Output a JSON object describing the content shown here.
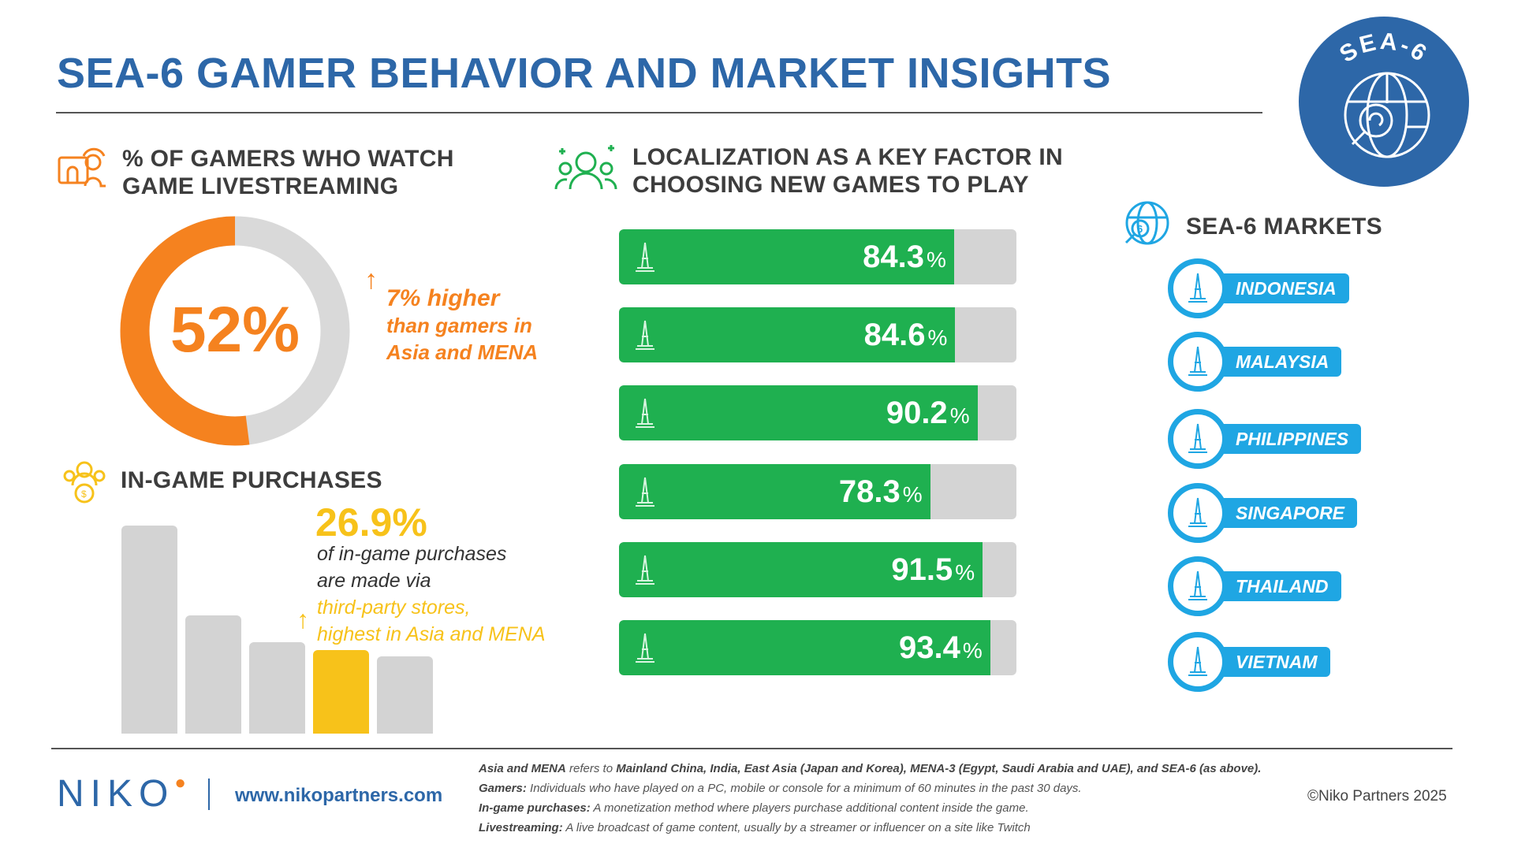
{
  "title": "SEA-6 GAMER BEHAVIOR AND MARKET INSIGHTS",
  "badge": {
    "text": "SEA-6",
    "color": "#2d67a8"
  },
  "livestream": {
    "heading_line1": "% OF GAMERS WHO WATCH",
    "heading_line2": "GAME LIVESTREAMING",
    "value_label": "52%",
    "note_highlight": "7% higher",
    "note_line2": "than gamers in",
    "note_line3": "Asia and MENA",
    "icon": "livestream-icon"
  },
  "purchases": {
    "heading": "IN-GAME PURCHASES",
    "value_label": "26.9%",
    "line1": "of in-game purchases",
    "line2": "are made via",
    "line3": "third-party stores,",
    "line4": "highest in Asia and MENA",
    "icon": "coin-people-icon"
  },
  "localization": {
    "heading_line1": "LOCALIZATION AS A KEY FACTOR IN",
    "heading_line2": "CHOOSING NEW GAMES TO PLAY",
    "icon": "people-speech-icon"
  },
  "markets": {
    "heading": "SEA-6 MARKETS",
    "icon": "globe-six-icon",
    "items": [
      "INDONESIA",
      "MALAYSIA",
      "PHILIPPINES",
      "SINGAPORE",
      "THAILAND",
      "VIETNAM"
    ]
  },
  "footer": {
    "logo": "NIKO",
    "url": "www.nikopartners.com",
    "notes": [
      {
        "term": "Asia and MENA",
        "text": " refers to ",
        "rest": "Mainland China, India, East Asia (Japan and Korea), MENA-3 (Egypt, Saudi Arabia and UAE), and SEA-6 (as above)."
      },
      {
        "term": "Gamers:",
        "text": " Individuals who have played on a PC, mobile or console for a minimum of 60 minutes in the past 30 days.",
        "rest": ""
      },
      {
        "term": "In-game purchases:",
        "text": " A monetization method where players purchase additional content inside the game.",
        "rest": ""
      },
      {
        "term": "Livestreaming:",
        "text": " A live broadcast of game content, usually by a streamer or influencer on a site like Twitch",
        "rest": ""
      }
    ],
    "copyright": "©Niko Partners 2025"
  },
  "colors": {
    "orange": "#f5821f",
    "green": "#1fb050",
    "yellow": "#f7c21a",
    "cyan": "#1fa6e3",
    "blue": "#2d67a8",
    "grey": "#d4d4d4"
  },
  "chart_data": [
    {
      "type": "pie",
      "variant": "donut",
      "values": [
        52,
        48
      ],
      "highlight_colors": [
        "#f5821f",
        "#d9d9d9"
      ],
      "data_label": "52%"
    },
    {
      "type": "bar",
      "orientation": "horizontal",
      "categories": [
        "Indonesia",
        "Malaysia",
        "Philippines",
        "Singapore",
        "Thailand",
        "Vietnam"
      ],
      "values": [
        84.3,
        84.6,
        90.2,
        78.3,
        91.5,
        93.4
      ],
      "data_labels": [
        "84.3",
        "84.6",
        "90.2",
        "78.3",
        "91.5",
        "93.4"
      ],
      "xlim": [
        0,
        100
      ],
      "icons": [
        "monas-icon",
        "petronas-towers-icon",
        "shrine-icon",
        "marina-bay-sands-icon",
        "wat-arun-icon",
        "pagoda-icon"
      ]
    },
    {
      "type": "bar",
      "relative_values": [
        100,
        57,
        44,
        40,
        37
      ],
      "highlight_index": 3,
      "colors": [
        "#d3d3d3",
        "#d3d3d3",
        "#d3d3d3",
        "#f7c21a",
        "#d3d3d3"
      ]
    }
  ]
}
